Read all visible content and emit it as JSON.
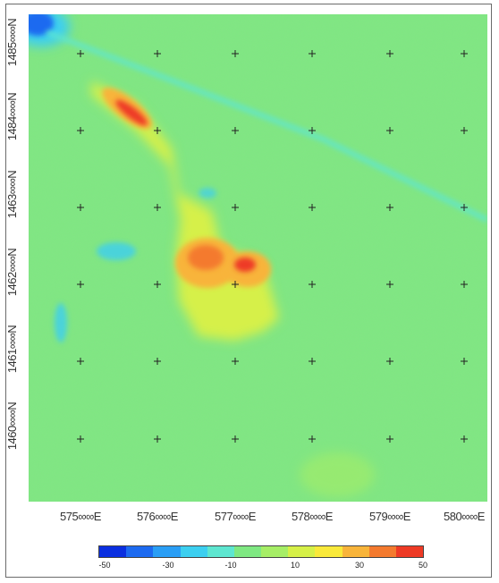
{
  "map": {
    "y_labels": [
      "1485∞∞N",
      "1484∞∞N",
      "1463∞∞N",
      "1462∞∞N",
      "1461∞∞N",
      "1460∞∞N"
    ],
    "x_labels": [
      "575∞∞E",
      "576∞∞E",
      "577∞∞E",
      "578∞∞E",
      "579∞∞E",
      "580∞∞E"
    ],
    "background_color": "#7fe882",
    "grid_marker": "cross"
  },
  "colorbar": {
    "tick_labels": [
      "-50",
      "-30",
      "-10",
      "10",
      "30",
      "50"
    ],
    "min": -50,
    "max": 50,
    "colors": [
      "#0a2fe0",
      "#1d6af0",
      "#2a9ef5",
      "#3ccff0",
      "#5ee6d0",
      "#7fe882",
      "#a6ee66",
      "#d6f048",
      "#f9e93a",
      "#f8b43a",
      "#f47a2e",
      "#ee3a25"
    ]
  }
}
